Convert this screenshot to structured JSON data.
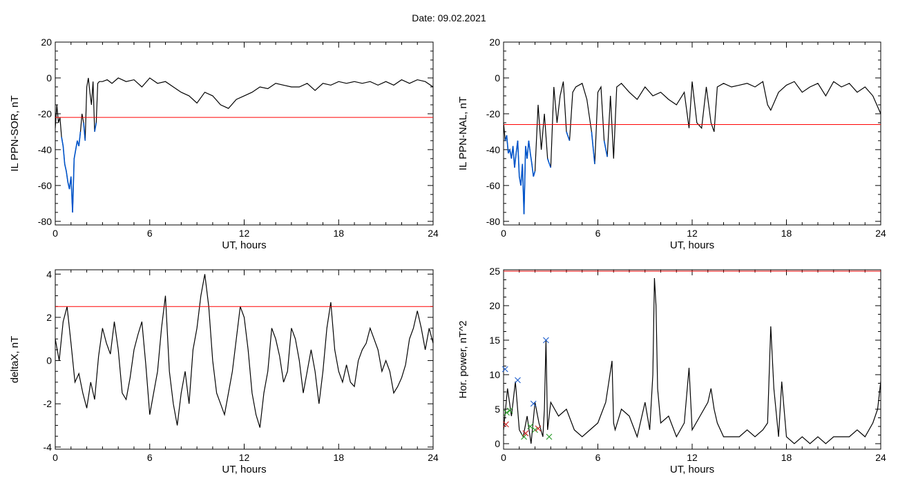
{
  "title": "Date:  09.02.2021",
  "chart_data": [
    {
      "type": "line",
      "ylabel": "IL PPN-SOR, nT",
      "xlabel": "UT, hours",
      "xlim": [
        0,
        24
      ],
      "ylim": [
        -82,
        20
      ],
      "xticks": [
        0,
        6,
        12,
        18,
        24
      ],
      "yticks": [
        20,
        0,
        -20,
        -40,
        -60,
        -80
      ],
      "threshold": -22,
      "colors": {
        "line": "#000000",
        "highlight": "#0055cc",
        "threshold": "#ff0000"
      },
      "highlight_below_threshold": true,
      "x": [
        0,
        0.1,
        0.2,
        0.3,
        0.4,
        0.5,
        0.6,
        0.7,
        0.8,
        0.9,
        1.0,
        1.1,
        1.2,
        1.3,
        1.4,
        1.5,
        1.6,
        1.7,
        1.8,
        1.9,
        2.0,
        2.1,
        2.2,
        2.3,
        2.4,
        2.5,
        2.6,
        2.7,
        2.8,
        3.0,
        3.3,
        3.6,
        4.0,
        4.5,
        5.0,
        5.5,
        6.0,
        6.5,
        7.0,
        7.5,
        8.0,
        8.5,
        9.0,
        9.5,
        10.0,
        10.5,
        11.0,
        11.5,
        12.0,
        12.5,
        13.0,
        13.5,
        14.0,
        14.5,
        15.0,
        15.5,
        16.0,
        16.5,
        17.0,
        17.5,
        18.0,
        18.5,
        19.0,
        19.5,
        20.0,
        20.5,
        21.0,
        21.5,
        22.0,
        22.5,
        23.0,
        23.5,
        24.0
      ],
      "y": [
        -28,
        -15,
        -25,
        -22,
        -33,
        -38,
        -48,
        -52,
        -58,
        -62,
        -55,
        -75,
        -45,
        -40,
        -35,
        -38,
        -30,
        -20,
        -25,
        -35,
        -5,
        0,
        -8,
        -15,
        -2,
        -30,
        -25,
        -3,
        -2,
        -2,
        -1,
        -3,
        0,
        -2,
        -1,
        -5,
        0,
        -3,
        -2,
        -5,
        -8,
        -10,
        -14,
        -8,
        -10,
        -15,
        -17,
        -12,
        -10,
        -8,
        -5,
        -6,
        -3,
        -4,
        -5,
        -5,
        -3,
        -7,
        -3,
        -4,
        -2,
        -3,
        -2,
        -3,
        -2,
        -4,
        -2,
        -4,
        -1,
        -3,
        -1,
        -2,
        -5
      ]
    },
    {
      "type": "line",
      "ylabel": "IL PPN-NAL, nT",
      "xlabel": "UT, hours",
      "xlim": [
        0,
        24
      ],
      "ylim": [
        -82,
        20
      ],
      "xticks": [
        0,
        6,
        12,
        18,
        24
      ],
      "yticks": [
        20,
        0,
        -20,
        -40,
        -60,
        -80
      ],
      "threshold": -26,
      "colors": {
        "line": "#000000",
        "highlight": "#0055cc",
        "threshold": "#ff0000"
      },
      "highlight_below_threshold": true,
      "x": [
        0,
        0.1,
        0.2,
        0.3,
        0.4,
        0.5,
        0.6,
        0.7,
        0.8,
        0.9,
        1.0,
        1.1,
        1.2,
        1.3,
        1.4,
        1.5,
        1.6,
        1.7,
        1.8,
        1.9,
        2.0,
        2.2,
        2.4,
        2.6,
        2.8,
        3.0,
        3.2,
        3.4,
        3.6,
        3.8,
        4.0,
        4.2,
        4.4,
        4.6,
        5.0,
        5.3,
        5.6,
        5.8,
        6.0,
        6.2,
        6.4,
        6.6,
        6.8,
        7.0,
        7.2,
        7.5,
        8.0,
        8.5,
        9.0,
        9.5,
        10.0,
        10.5,
        11.0,
        11.5,
        11.8,
        12.0,
        12.3,
        12.6,
        12.9,
        13.2,
        13.4,
        13.6,
        14.0,
        14.5,
        15.0,
        15.5,
        16.0,
        16.5,
        16.8,
        17.0,
        17.5,
        18.0,
        18.5,
        19.0,
        19.5,
        20.0,
        20.5,
        21.0,
        21.5,
        22.0,
        22.5,
        23.0,
        23.5,
        24.0
      ],
      "y": [
        -25,
        -35,
        -32,
        -42,
        -40,
        -45,
        -38,
        -50,
        -42,
        -35,
        -55,
        -60,
        -48,
        -76,
        -38,
        -45,
        -35,
        -42,
        -48,
        -55,
        -52,
        -15,
        -40,
        -20,
        -45,
        -50,
        -5,
        -25,
        -10,
        -2,
        -30,
        -35,
        -8,
        -5,
        -3,
        -12,
        -30,
        -48,
        -8,
        -5,
        -35,
        -44,
        -10,
        -45,
        -5,
        -3,
        -8,
        -12,
        -5,
        -10,
        -8,
        -12,
        -15,
        -8,
        -28,
        -2,
        -25,
        -28,
        -5,
        -25,
        -30,
        -5,
        -3,
        -5,
        -4,
        -3,
        -5,
        -2,
        -15,
        -18,
        -8,
        -4,
        -2,
        -8,
        -5,
        -3,
        -10,
        -2,
        -5,
        -3,
        -8,
        -5,
        -10,
        -20
      ]
    },
    {
      "type": "line",
      "ylabel": "deltaX, nT",
      "xlabel": "UT, hours",
      "xlim": [
        0,
        24
      ],
      "ylim": [
        -4.1,
        4.2
      ],
      "xticks": [
        0,
        6,
        12,
        18,
        24
      ],
      "yticks": [
        4,
        2,
        0,
        -2,
        -4
      ],
      "threshold": 2.5,
      "colors": {
        "line": "#000000",
        "threshold": "#ff0000"
      },
      "x": [
        0,
        0.25,
        0.5,
        0.75,
        1.0,
        1.25,
        1.5,
        1.75,
        2.0,
        2.25,
        2.5,
        2.75,
        3.0,
        3.25,
        3.5,
        3.75,
        4.0,
        4.25,
        4.5,
        4.75,
        5.0,
        5.25,
        5.5,
        5.75,
        6.0,
        6.25,
        6.5,
        6.75,
        7.0,
        7.25,
        7.5,
        7.75,
        8.0,
        8.25,
        8.5,
        8.75,
        9.0,
        9.25,
        9.5,
        9.75,
        10.0,
        10.25,
        10.5,
        10.75,
        11.0,
        11.25,
        11.5,
        11.75,
        12.0,
        12.25,
        12.5,
        12.75,
        13.0,
        13.25,
        13.5,
        13.75,
        14.0,
        14.25,
        14.5,
        14.75,
        15.0,
        15.25,
        15.5,
        15.75,
        16.0,
        16.25,
        16.5,
        16.75,
        17.0,
        17.25,
        17.5,
        17.75,
        18.0,
        18.25,
        18.5,
        18.75,
        19.0,
        19.25,
        19.5,
        19.75,
        20.0,
        20.25,
        20.5,
        20.75,
        21.0,
        21.25,
        21.5,
        21.75,
        22.0,
        22.25,
        22.5,
        22.75,
        23.0,
        23.25,
        23.5,
        23.75,
        24.0
      ],
      "y": [
        1.0,
        0.0,
        1.8,
        2.5,
        0.8,
        -1.0,
        -0.6,
        -1.5,
        -2.2,
        -1.0,
        -1.8,
        0.2,
        1.5,
        0.8,
        0.3,
        1.8,
        0.5,
        -1.5,
        -1.8,
        -0.8,
        0.5,
        1.2,
        1.8,
        -0.2,
        -2.5,
        -1.5,
        -0.5,
        1.5,
        3.0,
        -0.5,
        -2.0,
        -3.0,
        -1.5,
        -0.5,
        -2.0,
        0.5,
        1.5,
        3.0,
        4.0,
        2.5,
        0.0,
        -1.5,
        -2.0,
        -2.5,
        -1.5,
        -0.5,
        1.0,
        2.5,
        2.0,
        0.5,
        -1.5,
        -2.5,
        -3.1,
        -1.5,
        -0.5,
        1.5,
        1.0,
        0.2,
        -1.0,
        -0.5,
        1.5,
        1.0,
        0.0,
        -1.5,
        -0.5,
        0.5,
        -0.5,
        -2.0,
        -0.5,
        1.5,
        2.7,
        0.5,
        -0.5,
        -1.0,
        -0.2,
        -1.0,
        -1.2,
        0.0,
        0.5,
        0.8,
        1.5,
        1.0,
        0.5,
        -0.5,
        0.0,
        -0.5,
        -1.5,
        -1.2,
        -0.8,
        -0.2,
        1.0,
        1.5,
        2.3,
        1.5,
        0.5,
        1.5,
        0.8
      ]
    },
    {
      "type": "line",
      "ylabel": "Hor. power, nT^2",
      "xlabel": "UT, hours",
      "xlim": [
        0,
        24
      ],
      "ylim": [
        -0.8,
        25.2
      ],
      "xticks": [
        0,
        6,
        12,
        18,
        24
      ],
      "yticks": [
        25,
        20,
        15,
        10,
        5,
        0
      ],
      "threshold": 25,
      "colors": {
        "line": "#000000",
        "threshold": "#ff0000",
        "marker_blue": "#1f5fcc",
        "marker_green": "#2e9e2e",
        "marker_red": "#cc2222"
      },
      "x": [
        0,
        0.25,
        0.5,
        0.75,
        1.0,
        1.25,
        1.5,
        1.75,
        2.0,
        2.25,
        2.5,
        2.6,
        2.7,
        2.8,
        3.0,
        3.5,
        4.0,
        4.5,
        5.0,
        5.5,
        6.0,
        6.5,
        6.9,
        7.0,
        7.1,
        7.5,
        8.0,
        8.5,
        9.0,
        9.3,
        9.5,
        9.6,
        9.7,
        9.8,
        10.0,
        10.5,
        11.0,
        11.5,
        11.8,
        12.0,
        12.5,
        13.0,
        13.2,
        13.4,
        13.6,
        14.0,
        14.5,
        15.0,
        15.5,
        16.0,
        16.5,
        16.8,
        17.0,
        17.2,
        17.5,
        17.7,
        18.0,
        18.5,
        19.0,
        19.5,
        20.0,
        20.5,
        21.0,
        21.5,
        22.0,
        22.5,
        23.0,
        23.5,
        23.8,
        24.0
      ],
      "y": [
        2,
        8,
        4,
        9,
        2,
        1,
        4,
        0,
        6,
        3,
        1,
        5,
        15,
        2,
        6,
        4,
        5,
        2,
        1,
        2,
        3,
        6,
        12,
        3,
        2,
        5,
        4,
        1,
        6,
        2,
        10,
        24,
        20,
        8,
        3,
        4,
        1,
        3,
        11,
        2,
        4,
        6,
        8,
        5,
        3,
        1,
        1,
        1,
        2,
        1,
        2,
        3,
        17,
        8,
        1,
        9,
        1,
        0,
        1,
        0,
        1,
        0,
        1,
        1,
        1,
        2,
        1,
        3,
        5,
        9
      ],
      "markers_blue": [
        {
          "x": 0.1,
          "y": 10.8
        },
        {
          "x": 0.9,
          "y": 9.2
        },
        {
          "x": 1.9,
          "y": 5.8
        },
        {
          "x": 2.7,
          "y": 15.0
        }
      ],
      "markers_green": [
        {
          "x": 0.2,
          "y": 4.5
        },
        {
          "x": 0.4,
          "y": 4.8
        },
        {
          "x": 1.3,
          "y": 1.0
        },
        {
          "x": 1.7,
          "y": 2.5
        },
        {
          "x": 2.0,
          "y": 2.0
        },
        {
          "x": 2.9,
          "y": 1.0
        }
      ],
      "markers_red": [
        {
          "x": 0.15,
          "y": 2.8
        },
        {
          "x": 1.4,
          "y": 1.5
        },
        {
          "x": 2.2,
          "y": 2.2
        }
      ]
    }
  ]
}
